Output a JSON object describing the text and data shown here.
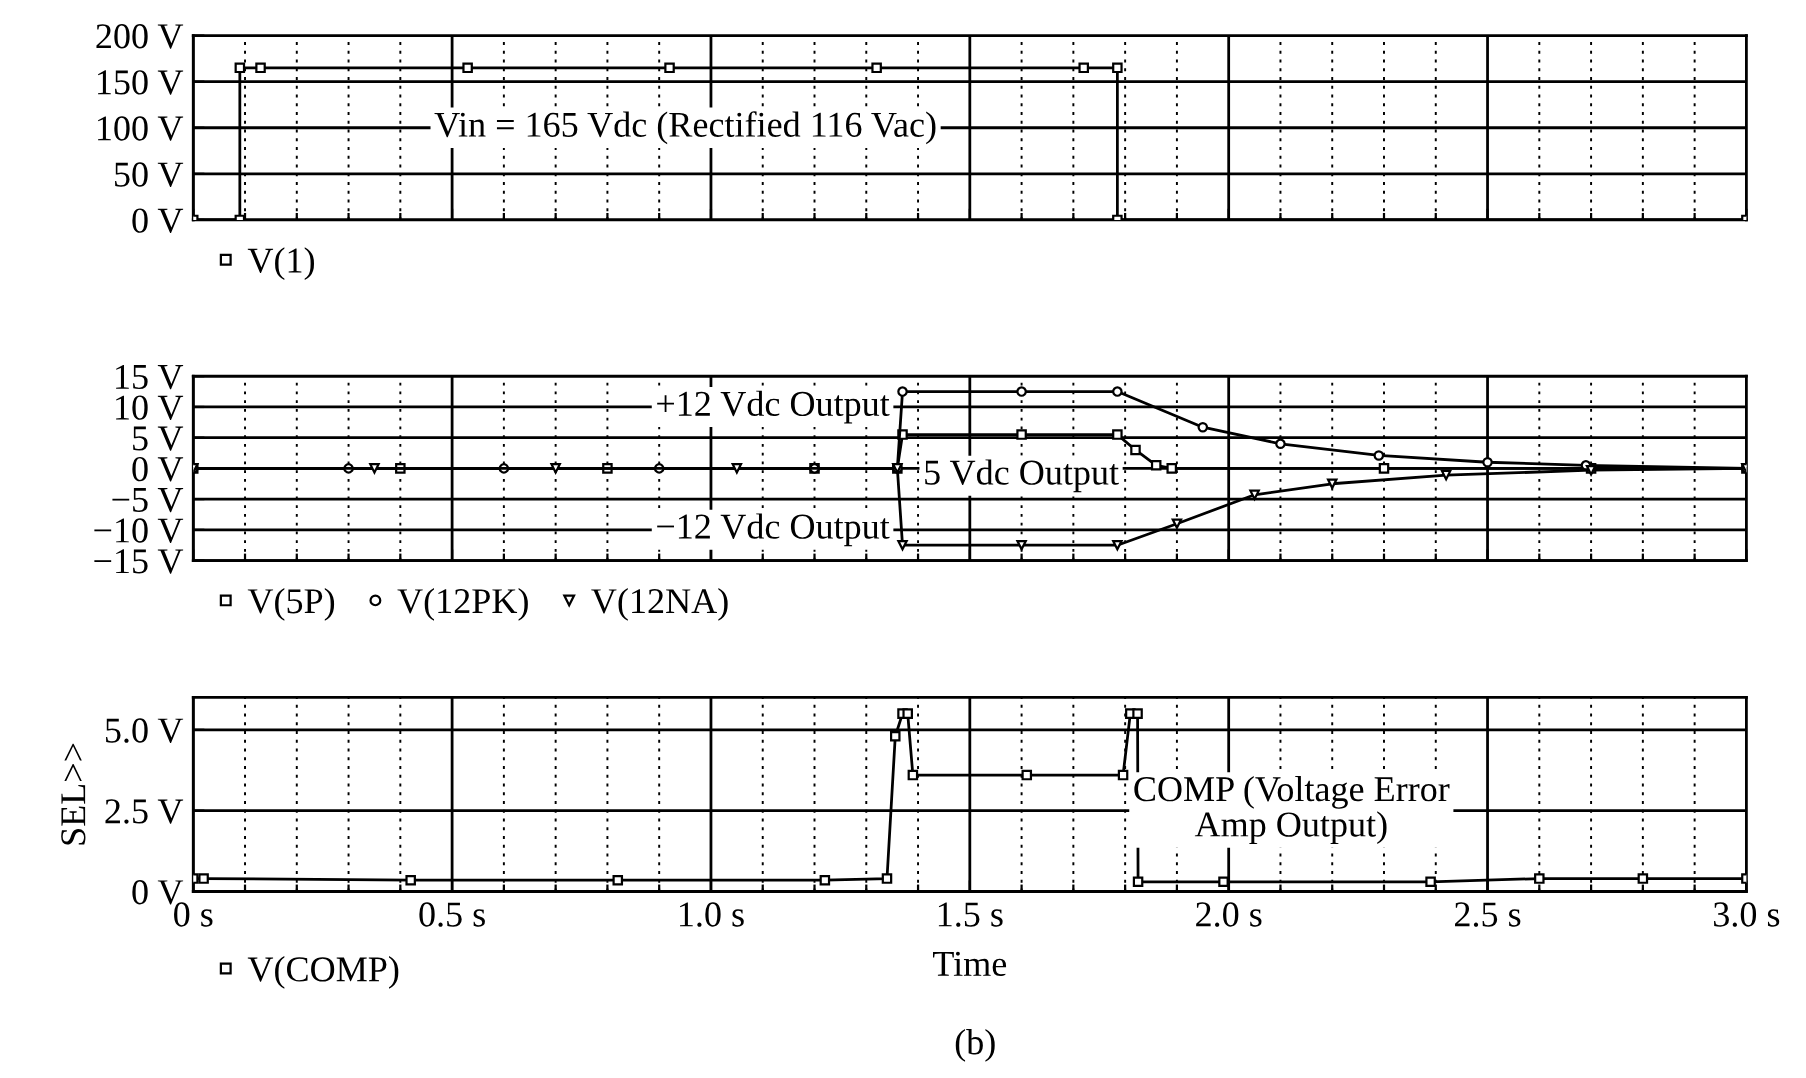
{
  "chart_data": [
    {
      "type": "line",
      "x": [
        0,
        0.09,
        0.09,
        0.13,
        0.53,
        0.92,
        1.32,
        1.72,
        1.785,
        1.785,
        3.0
      ],
      "series": [
        {
          "name": "V(1)",
          "color": "#000000",
          "marker": "square",
          "values": [
            0,
            0,
            165,
            165,
            165,
            165,
            165,
            165,
            165,
            0,
            0
          ]
        }
      ],
      "ylim": [
        0,
        200
      ],
      "yticks": [
        {
          "value": 0,
          "label": "0 V"
        },
        {
          "value": 50,
          "label": "50 V"
        },
        {
          "value": 100,
          "label": "100 V"
        },
        {
          "value": 150,
          "label": "150 V"
        },
        {
          "value": 200,
          "label": "200 V"
        }
      ],
      "xlim": [
        0,
        3.0
      ],
      "xticks": [
        0,
        {
          "value": 0.1,
          "label": null
        },
        {
          "value": 0.2,
          "label": null
        },
        {
          "value": 0.3,
          "label": null
        },
        {
          "value": 0.4,
          "label": null
        },
        0.5,
        {
          "value": 0.6,
          "label": null
        },
        {
          "value": 0.7,
          "label": null
        },
        {
          "value": 0.8,
          "label": null
        },
        {
          "value": 0.9,
          "label": null
        },
        1.0,
        {
          "value": 1.1,
          "label": null
        },
        {
          "value": 1.2,
          "label": null
        },
        {
          "value": 1.3,
          "label": null
        },
        {
          "value": 1.4,
          "label": null
        },
        1.5,
        {
          "value": 1.6,
          "label": null
        },
        {
          "value": 1.7,
          "label": null
        },
        {
          "value": 1.8,
          "label": null
        },
        {
          "value": 1.9,
          "label": null
        },
        2.0,
        {
          "value": 2.1,
          "label": null
        },
        {
          "value": 2.2,
          "label": null
        },
        {
          "value": 2.3,
          "label": null
        },
        {
          "value": 2.4,
          "label": null
        },
        2.5,
        {
          "value": 2.6,
          "label": null
        },
        {
          "value": 2.7,
          "label": null
        },
        {
          "value": 2.8,
          "label": null
        },
        {
          "value": 2.9,
          "label": null
        },
        3.0
      ],
      "tick_labels": "y",
      "grid": true,
      "legend": "bottom left",
      "annotations": [
        "Vin = 165 Vdc (Rectified 116 Vac)"
      ]
    },
    {
      "type": "line",
      "series": [
        {
          "name": "V(5P)",
          "color": "#000000",
          "marker": "square",
          "x": [
            0,
            0.4,
            0.8,
            1.2,
            1.36,
            1.37,
            1.6,
            1.785,
            1.82,
            1.86,
            1.89,
            2.3,
            2.7,
            3.0
          ],
          "values": [
            0,
            0,
            0,
            0,
            0,
            5.5,
            5.5,
            5.5,
            3,
            0.5,
            0,
            0,
            0,
            0
          ]
        },
        {
          "name": "V(12PK)",
          "color": "#000000",
          "marker": "circle",
          "x": [
            0,
            0.3,
            0.6,
            0.9,
            1.2,
            1.36,
            1.37,
            1.6,
            1.785,
            1.95,
            2.1,
            2.29,
            2.5,
            2.69,
            3.0
          ],
          "values": [
            0,
            0,
            0,
            0,
            0,
            0,
            12.5,
            12.5,
            12.5,
            6.7,
            4,
            2.1,
            1,
            0.5,
            0
          ]
        },
        {
          "name": "V(12NA)",
          "color": "#000000",
          "marker": "triangle",
          "x": [
            0,
            0.35,
            0.7,
            1.05,
            1.36,
            1.37,
            1.6,
            1.785,
            1.9,
            2.05,
            2.2,
            2.42,
            2.7,
            3.0
          ],
          "values": [
            0,
            0,
            0,
            0,
            0,
            -12.5,
            -12.5,
            -12.5,
            -9,
            -4.3,
            -2.5,
            -1.1,
            -0.3,
            0
          ]
        }
      ],
      "ylim": [
        -15,
        15
      ],
      "yticks": [
        {
          "value": -15,
          "label": "−15 V"
        },
        {
          "value": -10,
          "label": "−10 V"
        },
        {
          "value": -5,
          "label": "−5 V"
        },
        {
          "value": 0,
          "label": "0 V"
        },
        {
          "value": 5,
          "label": "5 V"
        },
        {
          "value": 10,
          "label": "10 V"
        },
        {
          "value": 15,
          "label": "15 V"
        }
      ],
      "xlim": [
        0,
        3.0
      ],
      "xticks": [
        0,
        {
          "value": 0.1,
          "label": null
        },
        {
          "value": 0.2,
          "label": null
        },
        {
          "value": 0.3,
          "label": null
        },
        {
          "value": 0.4,
          "label": null
        },
        0.5,
        {
          "value": 0.6,
          "label": null
        },
        {
          "value": 0.7,
          "label": null
        },
        {
          "value": 0.8,
          "label": null
        },
        {
          "value": 0.9,
          "label": null
        },
        1.0,
        {
          "value": 1.1,
          "label": null
        },
        {
          "value": 1.2,
          "label": null
        },
        {
          "value": 1.3,
          "label": null
        },
        {
          "value": 1.4,
          "label": null
        },
        1.5,
        {
          "value": 1.6,
          "label": null
        },
        {
          "value": 1.7,
          "label": null
        },
        {
          "value": 1.8,
          "label": null
        },
        {
          "value": 1.9,
          "label": null
        },
        2.0,
        {
          "value": 2.1,
          "label": null
        },
        {
          "value": 2.2,
          "label": null
        },
        {
          "value": 2.3,
          "label": null
        },
        {
          "value": 2.4,
          "label": null
        },
        2.5,
        {
          "value": 2.6,
          "label": null
        },
        {
          "value": 2.7,
          "label": null
        },
        {
          "value": 2.8,
          "label": null
        },
        {
          "value": 2.9,
          "label": null
        },
        3.0
      ],
      "tick_labels": "y",
      "grid": true,
      "legend": "bottom left",
      "annotations": [
        "+12 Vdc Output",
        "5 Vdc Output",
        "−12 Vdc Output"
      ]
    },
    {
      "type": "line",
      "series": [
        {
          "name": "V(COMP)",
          "color": "#000000",
          "marker": "square",
          "x": [
            0,
            0.02,
            0.42,
            0.82,
            1.22,
            1.34,
            1.356,
            1.37,
            1.38,
            1.39,
            1.61,
            1.796,
            1.81,
            1.824,
            1.825,
            1.99,
            2.39,
            2.6,
            2.8,
            3.0
          ],
          "values": [
            0.4,
            0.4,
            0.35,
            0.35,
            0.35,
            0.4,
            4.8,
            5.5,
            5.5,
            3.6,
            3.6,
            3.6,
            5.5,
            5.5,
            0.3,
            0.3,
            0.3,
            0.4,
            0.4,
            0.4
          ]
        }
      ],
      "ylim": [
        0,
        6
      ],
      "yticks": [
        {
          "value": 0,
          "label": "0 V"
        },
        {
          "value": 2.5,
          "label": "2.5 V"
        },
        {
          "value": 5.0,
          "label": "5.0 V"
        }
      ],
      "xlim": [
        0,
        3.0
      ],
      "xticks": [
        {
          "value": 0,
          "label": "0 s"
        },
        {
          "value": 0.1,
          "label": null
        },
        {
          "value": 0.2,
          "label": null
        },
        {
          "value": 0.3,
          "label": null
        },
        {
          "value": 0.4,
          "label": null
        },
        {
          "value": 0.5,
          "label": "0.5 s"
        },
        {
          "value": 0.6,
          "label": null
        },
        {
          "value": 0.7,
          "label": null
        },
        {
          "value": 0.8,
          "label": null
        },
        {
          "value": 0.9,
          "label": null
        },
        {
          "value": 1.0,
          "label": "1.0 s"
        },
        {
          "value": 1.1,
          "label": null
        },
        {
          "value": 1.2,
          "label": null
        },
        {
          "value": 1.3,
          "label": null
        },
        {
          "value": 1.4,
          "label": null
        },
        {
          "value": 1.5,
          "label": "1.5 s"
        },
        {
          "value": 1.6,
          "label": null
        },
        {
          "value": 1.7,
          "label": null
        },
        {
          "value": 1.8,
          "label": null
        },
        {
          "value": 1.9,
          "label": null
        },
        {
          "value": 2.0,
          "label": "2.0 s"
        },
        {
          "value": 2.1,
          "label": null
        },
        {
          "value": 2.2,
          "label": null
        },
        {
          "value": 2.3,
          "label": null
        },
        {
          "value": 2.4,
          "label": null
        },
        {
          "value": 2.5,
          "label": "2.5 s"
        },
        {
          "value": 2.6,
          "label": null
        },
        {
          "value": 2.7,
          "label": null
        },
        {
          "value": 2.8,
          "label": null
        },
        {
          "value": 2.9,
          "label": null
        },
        {
          "value": 3.0,
          "label": "3.0 s"
        }
      ],
      "grid": true,
      "legend": "bottom left",
      "xlabel": "Time",
      "ylabel": "SEL>>",
      "annotations": [
        "COMP (Voltage Error\nAmp Output)",
        "(b)"
      ]
    }
  ]
}
